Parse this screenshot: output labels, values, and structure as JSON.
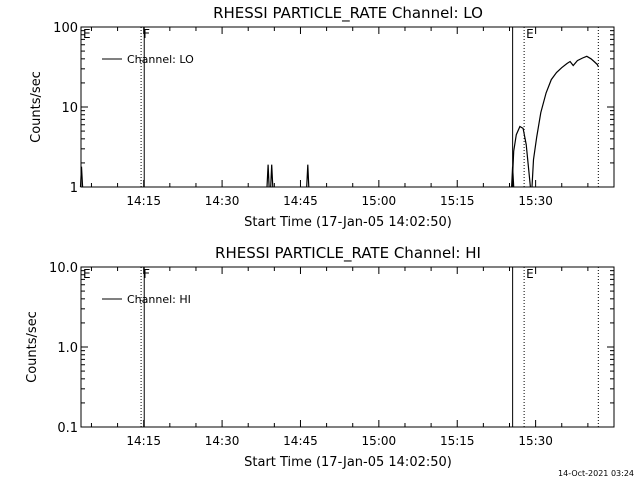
{
  "footer": {
    "timestamp": "14-Oct-2021 03:24"
  },
  "chart_data": [
    {
      "type": "line",
      "title": "RHESSI PARTICLE_RATE Channel: LO",
      "xlabel": "Start Time (17-Jan-05 14:02:50)",
      "ylabel": "Counts/sec",
      "y_scale": "log",
      "xlim": [
        "14:03",
        "15:45"
      ],
      "ylim": [
        1,
        100
      ],
      "x_ticks": [
        "14:15",
        "14:30",
        "14:45",
        "15:00",
        "15:15",
        "15:30"
      ],
      "y_ticks": [
        "1",
        "10",
        "100"
      ],
      "legend": {
        "placement": "top-left",
        "entries": [
          "Channel: LO"
        ]
      },
      "flags": [
        {
          "label": "E",
          "time": "14:03",
          "style": "none"
        },
        {
          "label": "F",
          "time": "14:14.5",
          "style": "dotted"
        },
        {
          "label": "",
          "time": "14:15.1",
          "style": "solid"
        },
        {
          "label": "",
          "time": "15:25.6",
          "style": "solid"
        },
        {
          "label": "E",
          "time": "15:27.8",
          "style": "dotted"
        },
        {
          "label": "",
          "time": "15:42",
          "style": "dotted"
        }
      ],
      "series": [
        {
          "name": "Channel: LO",
          "segments": [
            [
              [
                "14:02.9",
                1.0
              ],
              [
                "14:03.1",
                1.8
              ],
              [
                "14:03.3",
                1.0
              ]
            ],
            [
              [
                "14:38.6",
                1.0
              ],
              [
                "14:38.8",
                1.9
              ],
              [
                "14:39.0",
                1.0
              ]
            ],
            [
              [
                "14:39.3",
                1.0
              ],
              [
                "14:39.5",
                1.9
              ],
              [
                "14:39.7",
                1.0
              ]
            ],
            [
              [
                "14:46.2",
                1.0
              ],
              [
                "14:46.4",
                1.9
              ],
              [
                "14:46.6",
                1.0
              ]
            ],
            [
              [
                "15:25.4",
                1.0
              ],
              [
                "15:25.6",
                1.8
              ],
              [
                "15:25.8",
                1.0
              ]
            ],
            [
              [
                "15:25.5",
                1.0
              ],
              [
                "15:25.8",
                2.8
              ],
              [
                "15:26.3",
                4.5
              ],
              [
                "15:27.0",
                5.7
              ],
              [
                "15:27.6",
                5.4
              ],
              [
                "15:28.2",
                3.4
              ],
              [
                "15:28.7",
                1.6
              ],
              [
                "15:29.0",
                1.0
              ]
            ],
            [
              [
                "15:29.3",
                1.0
              ],
              [
                "15:29.6",
                2.2
              ],
              [
                "15:30.2",
                4.2
              ],
              [
                "15:31.0",
                8.5
              ],
              [
                "15:32.0",
                15
              ],
              [
                "15:33.0",
                22
              ],
              [
                "15:34.0",
                27
              ],
              [
                "15:35.0",
                31
              ],
              [
                "15:36.0",
                35
              ],
              [
                "15:36.6",
                37
              ],
              [
                "15:37.2",
                33
              ],
              [
                "15:38.0",
                38
              ],
              [
                "15:39.0",
                41
              ],
              [
                "15:39.8",
                43
              ],
              [
                "15:40.6",
                40
              ],
              [
                "15:41.2",
                37
              ],
              [
                "15:41.8",
                34
              ],
              [
                "15:42.0",
                32
              ]
            ]
          ]
        }
      ]
    },
    {
      "type": "line",
      "title": "RHESSI PARTICLE_RATE Channel: HI",
      "xlabel": "Start Time (17-Jan-05 14:02:50)",
      "ylabel": "Counts/sec",
      "y_scale": "log",
      "xlim": [
        "14:03",
        "15:45"
      ],
      "ylim": [
        0.1,
        10
      ],
      "x_ticks": [
        "14:15",
        "14:30",
        "14:45",
        "15:00",
        "15:15",
        "15:30"
      ],
      "y_ticks": [
        "0.1",
        "1.0",
        "10.0"
      ],
      "legend": {
        "placement": "top-left",
        "entries": [
          "Channel: HI"
        ]
      },
      "flags": [
        {
          "label": "E",
          "time": "14:03",
          "style": "none"
        },
        {
          "label": "F",
          "time": "14:14.5",
          "style": "dotted"
        },
        {
          "label": "",
          "time": "14:15.1",
          "style": "solid"
        },
        {
          "label": "",
          "time": "15:25.6",
          "style": "solid"
        },
        {
          "label": "E",
          "time": "15:27.8",
          "style": "dotted"
        },
        {
          "label": "",
          "time": "15:42",
          "style": "dotted"
        }
      ],
      "series": [
        {
          "name": "Channel: HI",
          "segments": []
        }
      ]
    }
  ]
}
